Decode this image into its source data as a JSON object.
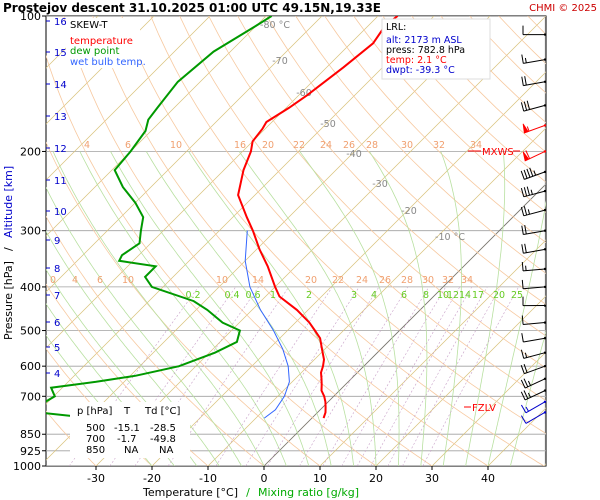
{
  "header": {
    "title": "Prostejov   descent  31.10.2025 01:00 UTC  49.15N,19.33E",
    "copyright": "CHMI © 2025"
  },
  "legend": {
    "title": "SKEW-T",
    "items": [
      {
        "label": "temperature",
        "color": "#ff0000"
      },
      {
        "label": "dew point",
        "color": "#009900"
      },
      {
        "label": "wet bulb temp.",
        "color": "#3366ff"
      }
    ]
  },
  "lrl": {
    "title": "LRL:",
    "lines": [
      {
        "text": "alt: 2173 m ASL",
        "color": "#0000cc"
      },
      {
        "text": "press: 782.8 hPa",
        "color": "#000000"
      },
      {
        "text": "temp: 2.1 °C",
        "color": "#ff0000"
      },
      {
        "text": "dwpt: -39.3 °C",
        "color": "#0000cc"
      }
    ]
  },
  "table": {
    "headers": [
      "p [hPa]",
      "T",
      "Td [°C]"
    ],
    "rows": [
      [
        "500",
        "-15.1",
        "-28.5"
      ],
      [
        "700",
        "-1.7",
        "-49.8"
      ],
      [
        "850",
        "NA",
        "NA"
      ]
    ]
  },
  "markers": {
    "mxws": "MXWS",
    "fzlv": "FZLV"
  },
  "chart_data": {
    "type": "line",
    "xlabel": "Temperature [°C]",
    "xlabel_sep": "/",
    "xlabel2": "Mixing ratio [g/kg]",
    "ylabel": "Pressure [hPa]",
    "ylabel_sep": "/",
    "ylabel2": "Altitude [km]",
    "x_ticks": [
      -30,
      -20,
      -10,
      0,
      10,
      20,
      30,
      40
    ],
    "p_ticks": [
      100,
      200,
      300,
      400,
      500,
      600,
      700,
      850,
      925,
      1000
    ],
    "alt_ticks_km": [
      16,
      15,
      14,
      13,
      12,
      11,
      10,
      9,
      8,
      7,
      6,
      5,
      4
    ],
    "isotherms_labeled": [
      -80,
      -70,
      -60,
      -50,
      -40,
      -30,
      -20,
      -10
    ],
    "isotherm_label_unit": "°C",
    "mixing_ratio_labels_upper": [
      4,
      6,
      10,
      16,
      20,
      22,
      24,
      26,
      28,
      30,
      32,
      34
    ],
    "mixing_ratio_labels_mid": [
      10,
      6,
      4,
      0,
      10,
      14,
      20,
      22,
      24,
      26,
      28,
      30,
      32,
      34
    ],
    "mixing_ratio_labels_lower": [
      0.2,
      0.4,
      0.6,
      1,
      2,
      3,
      4,
      6,
      8,
      10,
      12,
      14,
      17,
      20,
      25
    ],
    "series": [
      {
        "name": "temperature",
        "color": "#ff0000",
        "points": [
          [
            100,
            -56.5
          ],
          [
            105,
            -57.0
          ],
          [
            115,
            -56.0
          ],
          [
            130,
            -57.0
          ],
          [
            150,
            -58.5
          ],
          [
            160,
            -59.5
          ],
          [
            172,
            -61.0
          ],
          [
            178,
            -60.5
          ],
          [
            190,
            -60.0
          ],
          [
            200,
            -58.5
          ],
          [
            220,
            -56.5
          ],
          [
            250,
            -53.0
          ],
          [
            280,
            -47.5
          ],
          [
            300,
            -44.0
          ],
          [
            330,
            -39.5
          ],
          [
            360,
            -35.0
          ],
          [
            400,
            -30.0
          ],
          [
            420,
            -27.5
          ],
          [
            450,
            -22.0
          ],
          [
            480,
            -17.5
          ],
          [
            500,
            -15.1
          ],
          [
            520,
            -12.8
          ],
          [
            550,
            -10.5
          ],
          [
            580,
            -8.3
          ],
          [
            600,
            -7.3
          ],
          [
            620,
            -6.5
          ],
          [
            640,
            -5.3
          ],
          [
            660,
            -4.2
          ],
          [
            680,
            -3.2
          ],
          [
            700,
            -1.7
          ],
          [
            720,
            -0.5
          ],
          [
            740,
            0.5
          ],
          [
            760,
            1.4
          ],
          [
            782.8,
            2.1
          ]
        ]
      },
      {
        "name": "dew point",
        "color": "#009900",
        "points": [
          [
            100,
            -79.0
          ],
          [
            105,
            -80.0
          ],
          [
            120,
            -83.0
          ],
          [
            140,
            -84.0
          ],
          [
            160,
            -83.0
          ],
          [
            170,
            -82.5
          ],
          [
            180,
            -81.0
          ],
          [
            200,
            -80.0
          ],
          [
            220,
            -79.5
          ],
          [
            240,
            -75.0
          ],
          [
            260,
            -70.0
          ],
          [
            280,
            -66.0
          ],
          [
            300,
            -64.0
          ],
          [
            320,
            -62.0
          ],
          [
            340,
            -63.0
          ],
          [
            350,
            -62.5
          ],
          [
            360,
            -55.0
          ],
          [
            380,
            -55.0
          ],
          [
            400,
            -52.0
          ],
          [
            430,
            -42.0
          ],
          [
            450,
            -38.0
          ],
          [
            480,
            -33.0
          ],
          [
            500,
            -28.5
          ],
          [
            530,
            -27.0
          ],
          [
            560,
            -29.0
          ],
          [
            600,
            -33.0
          ],
          [
            630,
            -39.0
          ],
          [
            650,
            -45.0
          ],
          [
            670,
            -52.0
          ],
          [
            700,
            -49.8
          ],
          [
            720,
            -50.5
          ],
          [
            740,
            -54.0
          ],
          [
            760,
            -50.0
          ],
          [
            782.8,
            -39.3
          ]
        ]
      },
      {
        "name": "wet bulb temp.",
        "color": "#3366ff",
        "points": [
          [
            300,
            -45.0
          ],
          [
            350,
            -40.0
          ],
          [
            400,
            -34.5
          ],
          [
            450,
            -28.5
          ],
          [
            500,
            -22.5
          ],
          [
            550,
            -17.5
          ],
          [
            600,
            -13.5
          ],
          [
            650,
            -10.5
          ],
          [
            700,
            -8.8
          ],
          [
            750,
            -8.0
          ],
          [
            782.8,
            -8.5
          ]
        ]
      }
    ],
    "markers": [
      {
        "name": "MXWS",
        "p": 200
      },
      {
        "name": "FZLV",
        "p": 750
      }
    ],
    "wind_barbs": [
      {
        "p": 110,
        "dir": 270,
        "kt": 10
      },
      {
        "p": 125,
        "dir": 260,
        "kt": 15
      },
      {
        "p": 140,
        "dir": 260,
        "kt": 20
      },
      {
        "p": 158,
        "dir": 255,
        "kt": 30
      },
      {
        "p": 175,
        "dir": 250,
        "kt": 55
      },
      {
        "p": 200,
        "dir": 245,
        "kt": 60
      },
      {
        "p": 222,
        "dir": 250,
        "kt": 45
      },
      {
        "p": 245,
        "dir": 255,
        "kt": 35
      },
      {
        "p": 270,
        "dir": 255,
        "kt": 25
      },
      {
        "p": 300,
        "dir": 260,
        "kt": 20
      },
      {
        "p": 330,
        "dir": 260,
        "kt": 20
      },
      {
        "p": 365,
        "dir": 265,
        "kt": 15
      },
      {
        "p": 400,
        "dir": 265,
        "kt": 10
      },
      {
        "p": 440,
        "dir": 270,
        "kt": 10
      },
      {
        "p": 480,
        "dir": 265,
        "kt": 10
      },
      {
        "p": 520,
        "dir": 260,
        "kt": 10
      },
      {
        "p": 560,
        "dir": 255,
        "kt": 15
      },
      {
        "p": 600,
        "dir": 250,
        "kt": 20
      },
      {
        "p": 640,
        "dir": 245,
        "kt": 25
      },
      {
        "p": 680,
        "dir": 245,
        "kt": 25
      },
      {
        "p": 720,
        "dir": 240,
        "kt": 15
      },
      {
        "p": 760,
        "dir": 240,
        "kt": 10
      }
    ],
    "grid": true
  }
}
